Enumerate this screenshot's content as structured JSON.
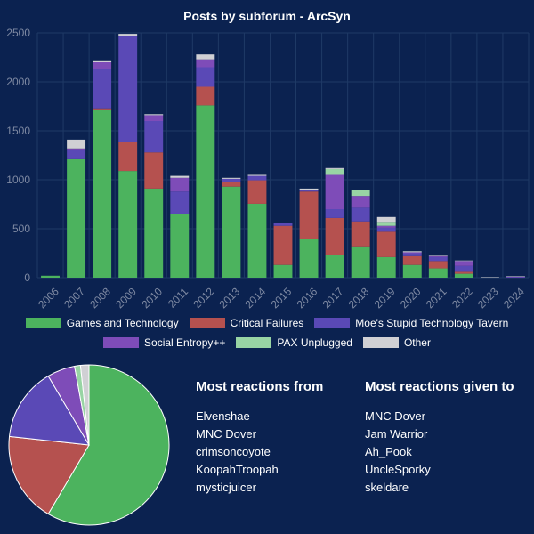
{
  "chart_data": [
    {
      "type": "bar",
      "stacked": true,
      "title": "Posts by subforum - ArcSyn",
      "categories": [
        "2006",
        "2007",
        "2008",
        "2009",
        "2010",
        "2011",
        "2012",
        "2013",
        "2014",
        "2015",
        "2016",
        "2017",
        "2018",
        "2019",
        "2020",
        "2021",
        "2022",
        "2023",
        "2024"
      ],
      "ylim": [
        0,
        2500
      ],
      "yticks": [
        0,
        500,
        1000,
        1500,
        2000,
        2500
      ],
      "grid": true,
      "legend": "bottom",
      "series": [
        {
          "name": "Games and Technology",
          "color": "#4cb35e",
          "values": [
            20,
            1210,
            1710,
            1090,
            910,
            650,
            1760,
            930,
            755,
            130,
            400,
            235,
            320,
            210,
            130,
            95,
            40,
            0,
            0
          ]
        },
        {
          "name": "Critical Failures",
          "color": "#b5514f",
          "values": [
            0,
            0,
            20,
            300,
            370,
            0,
            190,
            45,
            240,
            400,
            480,
            375,
            255,
            260,
            90,
            75,
            20,
            0,
            0
          ]
        },
        {
          "name": "Moe's Stupid Technology Tavern",
          "color": "#5a49b6",
          "values": [
            0,
            100,
            400,
            1080,
            320,
            230,
            200,
            35,
            45,
            25,
            10,
            90,
            140,
            40,
            30,
            40,
            60,
            0,
            5
          ]
        },
        {
          "name": "Social Entropy++",
          "color": "#7e4cb8",
          "values": [
            0,
            10,
            70,
            0,
            60,
            140,
            80,
            0,
            0,
            0,
            10,
            350,
            120,
            20,
            10,
            10,
            50,
            0,
            5
          ]
        },
        {
          "name": "PAX Unplugged",
          "color": "#98d4a4",
          "values": [
            0,
            0,
            0,
            0,
            0,
            0,
            0,
            0,
            0,
            0,
            0,
            60,
            60,
            40,
            0,
            0,
            0,
            0,
            0
          ]
        },
        {
          "name": "Other",
          "color": "#d0d0d4",
          "values": [
            0,
            90,
            20,
            20,
            10,
            20,
            50,
            10,
            10,
            5,
            10,
            10,
            5,
            50,
            10,
            5,
            5,
            5,
            5
          ]
        }
      ]
    },
    {
      "type": "pie",
      "slices": [
        {
          "name": "Games and Technology",
          "value": 58.5,
          "color": "#4cb35e"
        },
        {
          "name": "Critical Failures",
          "value": 18.2,
          "color": "#b5514f"
        },
        {
          "name": "Moe's Stupid Technology Tavern",
          "value": 14.8,
          "color": "#5a49b6"
        },
        {
          "name": "Social Entropy++",
          "value": 5.6,
          "color": "#7e4cb8"
        },
        {
          "name": "PAX Unplugged",
          "value": 1.2,
          "color": "#98d4a4"
        },
        {
          "name": "Other",
          "value": 1.7,
          "color": "#d0d0d4"
        }
      ]
    }
  ],
  "reactions_from": {
    "heading": "Most reactions from",
    "names": [
      "Elvenshae",
      "MNC Dover",
      "crimsoncoyote",
      "KoopahTroopah",
      "mysticjuicer"
    ]
  },
  "reactions_given": {
    "heading": "Most reactions given to",
    "names": [
      "MNC Dover",
      "Jam Warrior",
      "Ah_Pook",
      "UncleSporky",
      "skeldare"
    ]
  },
  "colors": {
    "background": "#0b2250",
    "grid": "#1f3a66",
    "tick_label": "#7f8aa3"
  }
}
